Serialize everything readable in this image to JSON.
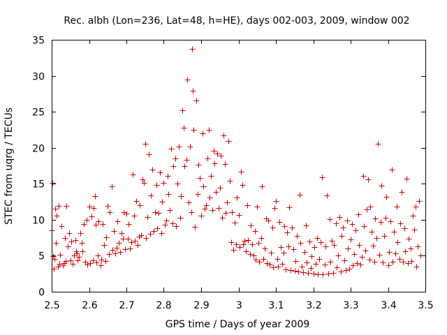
{
  "chart_data": {
    "type": "scatter",
    "title": "Rec. albh (Lon=236, Lat=48, h=HE), days 002-003, 2009, window 002",
    "xlabel": "GPS time / Days of year 2009",
    "ylabel": "STEC from uqrg / TECUs",
    "xlim": [
      2.5,
      3.5
    ],
    "ylim": [
      0,
      35
    ],
    "xticks": [
      "2.5",
      "2.6",
      "2.7",
      "2.8",
      "2.9",
      "3",
      "3.1",
      "3.2",
      "3.3",
      "3.4",
      "3.5"
    ],
    "yticks": [
      "0",
      "5",
      "10",
      "15",
      "20",
      "25",
      "30",
      "35"
    ],
    "grid": false,
    "marker": "plus",
    "color": "#cc0000",
    "series": [
      {
        "points": [
          [
            2.5,
            8.5
          ],
          [
            2.501,
            15.1
          ],
          [
            2.503,
            4.9
          ],
          [
            2.505,
            3.2
          ],
          [
            2.507,
            4.6
          ],
          [
            2.51,
            11.5
          ],
          [
            2.512,
            6.8
          ],
          [
            2.514,
            10.6
          ],
          [
            2.516,
            3.5
          ],
          [
            2.518,
            11.9
          ],
          [
            2.52,
            3.9
          ],
          [
            2.523,
            5.1
          ],
          [
            2.526,
            9.1
          ],
          [
            2.53,
            3.7
          ],
          [
            2.533,
            4.0
          ],
          [
            2.535,
            7.5
          ],
          [
            2.538,
            4.3
          ],
          [
            2.54,
            11.9
          ],
          [
            2.543,
            6.3
          ],
          [
            2.546,
            8.1
          ],
          [
            2.55,
            4.4
          ],
          [
            2.553,
            7.0
          ],
          [
            2.556,
            3.9
          ],
          [
            2.56,
            5.0
          ],
          [
            2.563,
            7.2
          ],
          [
            2.565,
            5.6
          ],
          [
            2.568,
            5.3
          ],
          [
            2.57,
            4.4
          ],
          [
            2.573,
            4.8
          ],
          [
            2.576,
            8.1
          ],
          [
            2.58,
            6.8
          ],
          [
            2.583,
            5.6
          ],
          [
            2.586,
            9.4
          ],
          [
            2.59,
            4.2
          ],
          [
            2.593,
            10.0
          ],
          [
            2.596,
            3.8
          ],
          [
            2.6,
            11.8
          ],
          [
            2.603,
            4.0
          ],
          [
            2.606,
            10.5
          ],
          [
            2.61,
            4.4
          ],
          [
            2.613,
            11.6
          ],
          [
            2.615,
            13.3
          ],
          [
            2.618,
            9.3
          ],
          [
            2.62,
            4.1
          ],
          [
            2.623,
            5.0
          ],
          [
            2.626,
            9.8
          ],
          [
            2.63,
            3.7
          ],
          [
            2.633,
            4.5
          ],
          [
            2.636,
            9.4
          ],
          [
            2.64,
            6.5
          ],
          [
            2.643,
            4.3
          ],
          [
            2.646,
            7.6
          ],
          [
            2.65,
            11.9
          ],
          [
            2.653,
            5.2
          ],
          [
            2.656,
            11.1
          ],
          [
            2.66,
            14.6
          ],
          [
            2.663,
            5.8
          ],
          [
            2.666,
            8.4
          ],
          [
            2.67,
            5.3
          ],
          [
            2.673,
            6.1
          ],
          [
            2.676,
            9.8
          ],
          [
            2.68,
            6.8
          ],
          [
            2.683,
            5.5
          ],
          [
            2.686,
            8.1
          ],
          [
            2.69,
            7.4
          ],
          [
            2.693,
            11.1
          ],
          [
            2.696,
            5.9
          ],
          [
            2.7,
            10.9
          ],
          [
            2.703,
            7.4
          ],
          [
            2.706,
            9.4
          ],
          [
            2.71,
            6.0
          ],
          [
            2.713,
            6.9
          ],
          [
            2.716,
            16.3
          ],
          [
            2.72,
            10.6
          ],
          [
            2.723,
            7.1
          ],
          [
            2.726,
            12.6
          ],
          [
            2.73,
            6.5
          ],
          [
            2.733,
            7.7
          ],
          [
            2.736,
            12.0
          ],
          [
            2.74,
            7.9
          ],
          [
            2.743,
            15.6
          ],
          [
            2.746,
            15.1
          ],
          [
            2.75,
            20.6
          ],
          [
            2.753,
            7.5
          ],
          [
            2.756,
            10.4
          ],
          [
            2.76,
            19.1
          ],
          [
            2.763,
            8.0
          ],
          [
            2.766,
            13.4
          ],
          [
            2.77,
            17.0
          ],
          [
            2.773,
            8.4
          ],
          [
            2.776,
            11.1
          ],
          [
            2.78,
            14.8
          ],
          [
            2.783,
            8.8
          ],
          [
            2.786,
            11.0
          ],
          [
            2.79,
            16.6
          ],
          [
            2.793,
            8.1
          ],
          [
            2.796,
            12.5
          ],
          [
            2.8,
            15.1
          ],
          [
            2.803,
            9.3
          ],
          [
            2.806,
            9.9
          ],
          [
            2.81,
            16.1
          ],
          [
            2.813,
            13.6
          ],
          [
            2.816,
            11.3
          ],
          [
            2.82,
            19.9
          ],
          [
            2.823,
            9.5
          ],
          [
            2.826,
            17.5
          ],
          [
            2.83,
            18.5
          ],
          [
            2.833,
            9.1
          ],
          [
            2.836,
            15.0
          ],
          [
            2.84,
            20.2
          ],
          [
            2.843,
            10.3
          ],
          [
            2.846,
            13.3
          ],
          [
            2.85,
            25.2
          ],
          [
            2.853,
            22.8
          ],
          [
            2.856,
            17.5
          ],
          [
            2.86,
            18.3
          ],
          [
            2.863,
            29.5
          ],
          [
            2.866,
            12.4
          ],
          [
            2.87,
            20.2
          ],
          [
            2.873,
            11.1
          ],
          [
            2.876,
            33.7
          ],
          [
            2.878,
            27.9
          ],
          [
            2.88,
            22.5
          ],
          [
            2.883,
            9.0
          ],
          [
            2.886,
            26.6
          ],
          [
            2.89,
            13.6
          ],
          [
            2.893,
            17.6
          ],
          [
            2.896,
            15.8
          ],
          [
            2.9,
            10.6
          ],
          [
            2.903,
            22.0
          ],
          [
            2.906,
            14.6
          ],
          [
            2.91,
            11.5
          ],
          [
            2.913,
            12.0
          ],
          [
            2.916,
            18.5
          ],
          [
            2.92,
            22.5
          ],
          [
            2.923,
            13.1
          ],
          [
            2.926,
            16.1
          ],
          [
            2.93,
            11.3
          ],
          [
            2.933,
            19.6
          ],
          [
            2.936,
            17.8
          ],
          [
            2.94,
            13.9
          ],
          [
            2.943,
            19.2
          ],
          [
            2.946,
            11.6
          ],
          [
            2.95,
            14.4
          ],
          [
            2.953,
            18.9
          ],
          [
            2.956,
            10.3
          ],
          [
            2.96,
            21.7
          ],
          [
            2.963,
            17.7
          ],
          [
            2.966,
            11.0
          ],
          [
            2.97,
            12.4
          ],
          [
            2.973,
            20.9
          ],
          [
            2.976,
            15.4
          ],
          [
            2.98,
            6.9
          ],
          [
            2.983,
            11.1
          ],
          [
            2.986,
            5.8
          ],
          [
            2.99,
            9.6
          ],
          [
            2.993,
            6.6
          ],
          [
            2.996,
            13.1
          ],
          [
            3.0,
            10.7
          ],
          [
            3.003,
            6.2
          ],
          [
            3.006,
            16.7
          ],
          [
            3.01,
            14.8
          ],
          [
            3.013,
            6.6
          ],
          [
            3.016,
            7.1
          ],
          [
            3.02,
            5.6
          ],
          [
            3.023,
            12.0
          ],
          [
            3.026,
            7.2
          ],
          [
            3.03,
            5.2
          ],
          [
            3.033,
            9.2
          ],
          [
            3.036,
            6.6
          ],
          [
            3.04,
            5.0
          ],
          [
            3.043,
            8.4
          ],
          [
            3.046,
            4.5
          ],
          [
            3.05,
            11.8
          ],
          [
            3.053,
            6.8
          ],
          [
            3.056,
            4.2
          ],
          [
            3.06,
            7.5
          ],
          [
            3.063,
            14.6
          ],
          [
            3.066,
            4.6
          ],
          [
            3.07,
            6.0
          ],
          [
            3.073,
            10.2
          ],
          [
            3.076,
            4.0
          ],
          [
            3.08,
            9.9
          ],
          [
            3.083,
            3.8
          ],
          [
            3.086,
            5.4
          ],
          [
            3.09,
            8.9
          ],
          [
            3.093,
            3.4
          ],
          [
            3.096,
            11.6
          ],
          [
            3.1,
            12.6
          ],
          [
            3.103,
            4.6
          ],
          [
            3.106,
            3.5
          ],
          [
            3.11,
            9.7
          ],
          [
            3.113,
            6.2
          ],
          [
            3.116,
            3.9
          ],
          [
            3.12,
            5.4
          ],
          [
            3.123,
            9.1
          ],
          [
            3.126,
            3.1
          ],
          [
            3.13,
            8.2
          ],
          [
            3.133,
            6.3
          ],
          [
            3.136,
            11.7
          ],
          [
            3.14,
            3.0
          ],
          [
            3.143,
            8.9
          ],
          [
            3.146,
            5.9
          ],
          [
            3.15,
            2.9
          ],
          [
            3.153,
            4.3
          ],
          [
            3.156,
            7.8
          ],
          [
            3.16,
            2.8
          ],
          [
            3.163,
            13.5
          ],
          [
            3.166,
            6.8
          ],
          [
            3.17,
            3.5
          ],
          [
            3.173,
            2.7
          ],
          [
            3.176,
            5.5
          ],
          [
            3.18,
            9.2
          ],
          [
            3.183,
            4.1
          ],
          [
            3.186,
            2.6
          ],
          [
            3.19,
            7.0
          ],
          [
            3.193,
            3.3
          ],
          [
            3.196,
            4.9
          ],
          [
            3.2,
            2.5
          ],
          [
            3.203,
            6.2
          ],
          [
            3.206,
            3.9
          ],
          [
            3.21,
            7.5
          ],
          [
            3.213,
            2.4
          ],
          [
            3.216,
            4.6
          ],
          [
            3.22,
            6.9
          ],
          [
            3.223,
            15.9
          ],
          [
            3.226,
            2.4
          ],
          [
            3.23,
            3.8
          ],
          [
            3.233,
            6.3
          ],
          [
            3.236,
            13.4
          ],
          [
            3.24,
            2.5
          ],
          [
            3.243,
            10.1
          ],
          [
            3.246,
            4.2
          ],
          [
            3.25,
            7.1
          ],
          [
            3.253,
            2.6
          ],
          [
            3.256,
            6.5
          ],
          [
            3.26,
            9.5
          ],
          [
            3.263,
            3.4
          ],
          [
            3.266,
            5.0
          ],
          [
            3.27,
            10.4
          ],
          [
            3.273,
            2.8
          ],
          [
            3.276,
            7.8
          ],
          [
            3.28,
            8.9
          ],
          [
            3.283,
            4.4
          ],
          [
            3.286,
            3.0
          ],
          [
            3.29,
            9.9
          ],
          [
            3.293,
            6.0
          ],
          [
            3.296,
            3.2
          ],
          [
            3.3,
            7.3
          ],
          [
            3.303,
            9.4
          ],
          [
            3.306,
            3.7
          ],
          [
            3.31,
            5.2
          ],
          [
            3.313,
            8.5
          ],
          [
            3.316,
            4.0
          ],
          [
            3.32,
            10.8
          ],
          [
            3.323,
            6.5
          ],
          [
            3.326,
            3.8
          ],
          [
            3.33,
            4.8
          ],
          [
            3.333,
            16.1
          ],
          [
            3.336,
            9.1
          ],
          [
            3.34,
            5.7
          ],
          [
            3.343,
            11.4
          ],
          [
            3.346,
            15.6
          ],
          [
            3.35,
            4.5
          ],
          [
            3.353,
            11.8
          ],
          [
            3.356,
            8.3
          ],
          [
            3.36,
            6.4
          ],
          [
            3.363,
            4.2
          ],
          [
            3.366,
            10.2
          ],
          [
            3.37,
            7.5
          ],
          [
            3.373,
            20.6
          ],
          [
            3.376,
            5.1
          ],
          [
            3.38,
            9.7
          ],
          [
            3.383,
            14.7
          ],
          [
            3.386,
            4.1
          ],
          [
            3.39,
            7.8
          ],
          [
            3.393,
            10.3
          ],
          [
            3.396,
            13.2
          ],
          [
            3.4,
            3.7
          ],
          [
            3.403,
            5.5
          ],
          [
            3.406,
            9.8
          ],
          [
            3.41,
            17.0
          ],
          [
            3.413,
            4.2
          ],
          [
            3.416,
            8.3
          ],
          [
            3.42,
            5.3
          ],
          [
            3.423,
            11.8
          ],
          [
            3.426,
            6.9
          ],
          [
            3.43,
            4.6
          ],
          [
            3.433,
            9.5
          ],
          [
            3.436,
            13.9
          ],
          [
            3.44,
            4.2
          ],
          [
            3.443,
            8.8
          ],
          [
            3.446,
            5.6
          ],
          [
            3.45,
            15.7
          ],
          [
            3.453,
            4.0
          ],
          [
            3.456,
            7.4
          ],
          [
            3.46,
            6.0
          ],
          [
            3.463,
            4.3
          ],
          [
            3.466,
            10.6
          ],
          [
            3.47,
            8.6
          ],
          [
            3.473,
            11.8
          ],
          [
            3.476,
            3.5
          ],
          [
            3.48,
            6.3
          ],
          [
            3.483,
            12.6
          ],
          [
            3.486,
            5.0
          ]
        ]
      }
    ]
  }
}
